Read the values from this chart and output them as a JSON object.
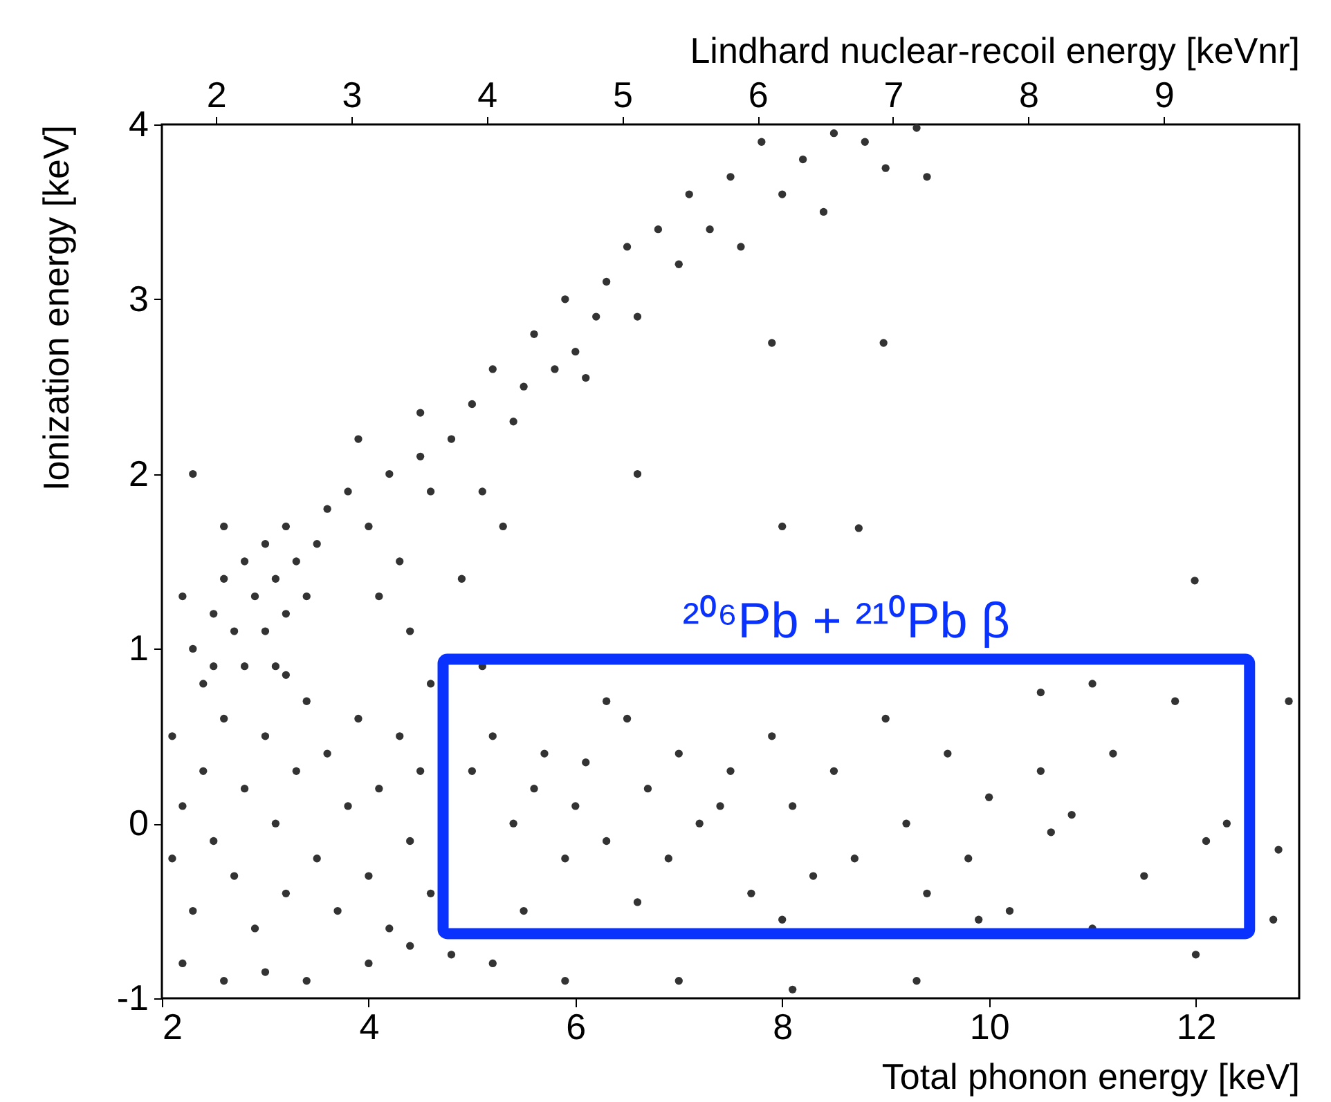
{
  "chart_data": {
    "type": "scatter",
    "xlabel": "Total phonon energy [keV]",
    "ylabel": "Ionization energy [keV]",
    "x2label": "Lindhard nuclear-recoil energy [keVnr]",
    "xlim": [
      2,
      13
    ],
    "xticks": [
      2,
      4,
      6,
      8,
      10,
      12
    ],
    "ylim": [
      -1,
      4
    ],
    "yticks": [
      -1,
      0,
      1,
      2,
      3,
      4
    ],
    "x2lim": [
      1.6,
      10.0
    ],
    "x2ticks": [
      2,
      3,
      4,
      5,
      6,
      7,
      8,
      9
    ],
    "grid": false,
    "marker": "circle",
    "annotations": [
      "²⁰⁶Pb  + ²¹⁰Pb β"
    ],
    "series": [
      {
        "color": "#333333",
        "x": [
          2.3,
          2.5,
          2.6,
          2.7,
          2.8,
          2.9,
          3.0,
          3.0,
          3.1,
          3.2,
          3.2,
          3.3,
          3.4,
          2.8,
          3.5,
          2.6,
          3.1,
          2.4,
          2.2,
          2.3,
          3.6,
          3.8,
          4.0,
          4.2,
          4.3,
          4.5,
          4.6,
          4.8,
          5.0,
          5.1,
          5.2,
          5.4,
          5.5,
          5.6,
          5.8,
          5.9,
          6.0,
          6.2,
          6.3,
          6.5,
          6.6,
          6.8,
          7.0,
          7.1,
          7.3,
          7.5,
          7.6,
          7.8,
          8.0,
          8.2,
          8.4,
          8.5,
          8.8,
          9.0,
          9.3,
          4.1,
          4.4,
          5.3,
          6.6,
          4.9,
          7.9,
          6.1,
          8.0,
          9.4,
          3.9,
          4.5,
          8.74,
          8.98,
          11.99,
          2.1,
          2.1,
          2.2,
          2.3,
          2.4,
          2.5,
          2.6,
          2.7,
          2.8,
          2.9,
          3.0,
          3.1,
          3.2,
          3.3,
          3.4,
          3.5,
          3.6,
          3.7,
          3.8,
          3.9,
          4.0,
          4.1,
          4.2,
          4.3,
          4.4,
          4.5,
          4.6,
          2.2,
          2.6,
          3.0,
          3.4,
          4.0,
          4.6,
          2.5,
          3.2,
          4.8,
          5.2,
          5.9,
          4.4,
          5.0,
          5.2,
          5.4,
          5.6,
          5.7,
          5.9,
          6.0,
          6.1,
          6.3,
          6.5,
          6.7,
          6.9,
          7.0,
          7.2,
          7.4,
          7.5,
          7.7,
          7.9,
          8.1,
          8.3,
          8.5,
          8.7,
          9.0,
          9.2,
          9.4,
          9.6,
          9.8,
          10.0,
          10.2,
          10.5,
          10.6,
          10.8,
          11.0,
          11.2,
          11.5,
          11.8,
          12.1,
          12.3,
          5.5,
          6.6,
          8.0,
          9.9,
          11.0,
          12.0,
          12.9,
          12.8,
          12.75,
          7.0,
          8.1,
          9.3,
          5.1,
          6.3,
          10.5
        ],
        "values": [
          1.0,
          1.2,
          1.4,
          1.1,
          1.5,
          1.3,
          1.6,
          1.1,
          1.4,
          1.2,
          1.7,
          1.5,
          1.3,
          0.9,
          1.6,
          1.7,
          0.9,
          0.8,
          1.3,
          2.0,
          1.8,
          1.9,
          1.7,
          2.0,
          1.5,
          2.1,
          1.9,
          2.2,
          2.4,
          1.9,
          2.6,
          2.3,
          2.5,
          2.8,
          2.6,
          3.0,
          2.7,
          2.9,
          3.1,
          3.3,
          2.9,
          3.4,
          3.2,
          3.6,
          3.4,
          3.7,
          3.3,
          3.9,
          3.6,
          3.8,
          3.5,
          3.95,
          3.9,
          3.75,
          3.98,
          1.3,
          1.1,
          1.7,
          2.0,
          1.4,
          2.75,
          2.55,
          1.7,
          3.7,
          2.2,
          2.35,
          1.69,
          2.75,
          1.39,
          0.5,
          -0.2,
          0.1,
          -0.5,
          0.3,
          -0.1,
          0.6,
          -0.3,
          0.2,
          -0.6,
          0.5,
          0.0,
          -0.4,
          0.3,
          0.7,
          -0.2,
          0.4,
          -0.5,
          0.1,
          0.6,
          -0.3,
          0.2,
          -0.6,
          0.5,
          -0.1,
          0.3,
          -0.4,
          -0.8,
          -0.9,
          -0.85,
          -0.9,
          -0.8,
          0.8,
          0.9,
          0.85,
          -0.75,
          -0.8,
          -0.9,
          -0.7,
          0.3,
          0.5,
          0.0,
          0.2,
          0.4,
          -0.2,
          0.1,
          0.35,
          -0.1,
          0.6,
          0.2,
          -0.2,
          0.4,
          0.0,
          0.1,
          0.3,
          -0.4,
          0.5,
          0.1,
          -0.3,
          0.3,
          -0.2,
          0.6,
          0.0,
          -0.4,
          0.4,
          -0.2,
          0.15,
          -0.5,
          0.3,
          -0.05,
          0.05,
          0.8,
          0.4,
          -0.3,
          0.7,
          -0.1,
          0.0,
          -0.5,
          -0.45,
          -0.55,
          -0.55,
          -0.6,
          -0.75,
          0.7,
          -0.15,
          -0.55,
          -0.9,
          -0.95,
          -0.9,
          0.9,
          0.7,
          0.75
        ]
      }
    ]
  }
}
